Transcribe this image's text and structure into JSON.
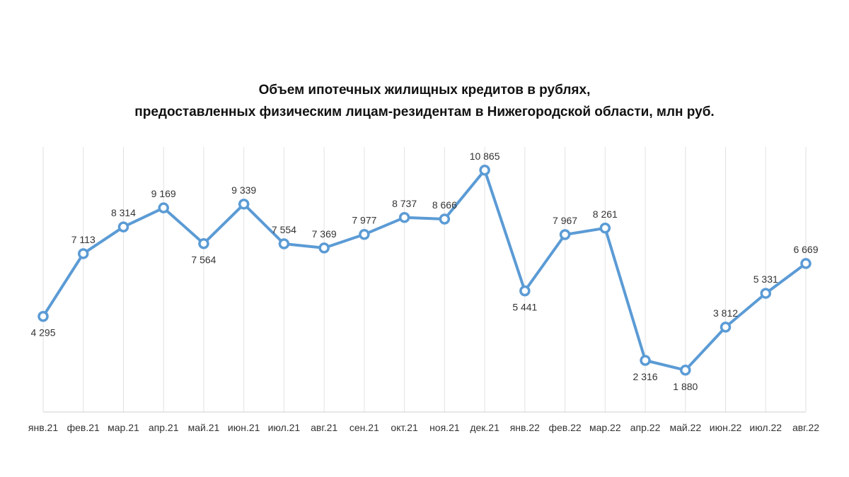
{
  "colors": {
    "series": "#5b9bd5",
    "grid": "#e2e2e2"
  },
  "chart_data": {
    "type": "line",
    "title": "Объем ипотечных жилищных кредитов в рублях, предоставленных физическим лицам-резидентам в Нижегородской области, млн руб.",
    "title_lines": [
      "Объем ипотечных жилищных кредитов в рублях,",
      "предоставленных физическим лицам-резидентам в Нижегородской области, млн руб."
    ],
    "xlabel": "",
    "ylabel": "",
    "categories": [
      "янв.21",
      "фев.21",
      "мар.21",
      "апр.21",
      "май.21",
      "июн.21",
      "июл.21",
      "авг.21",
      "сен.21",
      "окт.21",
      "ноя.21",
      "дек.21",
      "янв.22",
      "фев.22",
      "мар.22",
      "апр.22",
      "май.22",
      "июн.22",
      "июл.22",
      "авг.22"
    ],
    "values": [
      4295,
      7113,
      8314,
      9169,
      7564,
      9339,
      7554,
      7369,
      7977,
      8737,
      8666,
      10865,
      5441,
      7967,
      8261,
      2316,
      1880,
      3812,
      5331,
      6669
    ],
    "value_labels": [
      "4 295",
      "7 113",
      "8 314",
      "9 169",
      "7 564",
      "9 339",
      "7 554",
      "7 369",
      "7 977",
      "8 737",
      "8 666",
      "10 865",
      "5 441",
      "7 967",
      "8 261",
      "2 316",
      "1 880",
      "3 812",
      "5 331",
      "6 669"
    ],
    "label_positions": [
      "below",
      "above",
      "above",
      "above",
      "below",
      "above",
      "above",
      "above",
      "above",
      "above",
      "above",
      "above",
      "below",
      "above",
      "above",
      "below",
      "below",
      "above",
      "above",
      "above"
    ],
    "ylim": [
      0,
      12000
    ],
    "grid": "vertical",
    "legend": "none"
  }
}
